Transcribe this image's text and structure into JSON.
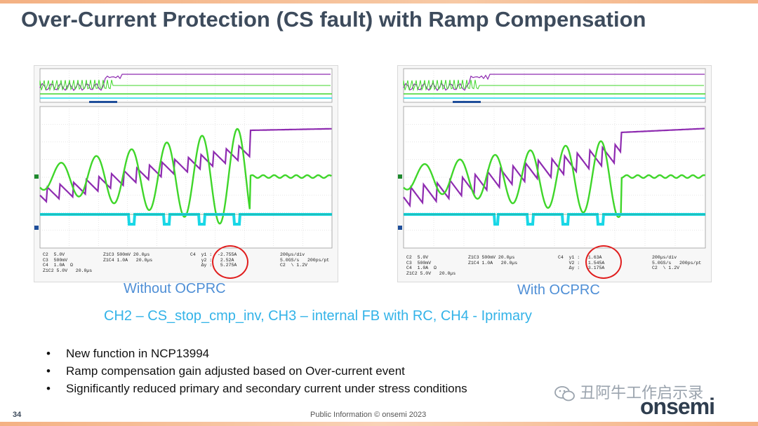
{
  "slide": {
    "title": "Over-Current Protection (CS fault) with Ramp Compensation",
    "caption_left": "Without OCPRC",
    "caption_right": "With OCPRC",
    "channel_caption": "CH2 – CS_stop_cmp_inv, CH3 – internal FB with RC, CH4 - Iprimary",
    "bullets": [
      "New function in NCP13994",
      "Ramp compensation gain adjusted based on Over-current event",
      "Significantly reduced primary and secondary current under stress conditions"
    ],
    "page_number": "34",
    "footer": "Public Information    © onsemi 2023",
    "logo": "onsemi",
    "watermark": "丑阿牛工作启示录"
  },
  "scopes": {
    "left": {
      "settings": "C2  5.0V\nC3  500mV\nC4  1.0A  Ω\nZ1C2 5.0V   20.0µs",
      "zoom": "Z1C3 500mV 20.0µs\nZ1C4 1.0A   20.0µs",
      "cursor": "C4  y1 :  -2.755A\n    y2 :   2.52A\n    Δy :   5.275A",
      "timebase": "200µs/div\n5.0GS/s   200ps/pt\nC2  \\ 1.2V"
    },
    "right": {
      "settings": "C2  5.0V\nC3  500mV\nC4  1.0A  Ω\nZ1C2 5.0V   20.0µs",
      "zoom": "Z1C3 500mV 20.0µs\nZ1C4 1.0A   20.0µs",
      "cursor": "C4  y1 :  -1.63A\n    V2 :   1.545A\n    Δy :   3.175A",
      "timebase": "200µs/div\n5.0GS/s   200ps/pt\nC2  \\ 1.2V"
    }
  },
  "colors": {
    "ch2": "#19d7e6",
    "ch3": "#8e2bb0",
    "ch4": "#3fd62a",
    "title": "#3d4b5c",
    "caption": "#4f8fd6",
    "highlight": "#e01e1e"
  }
}
